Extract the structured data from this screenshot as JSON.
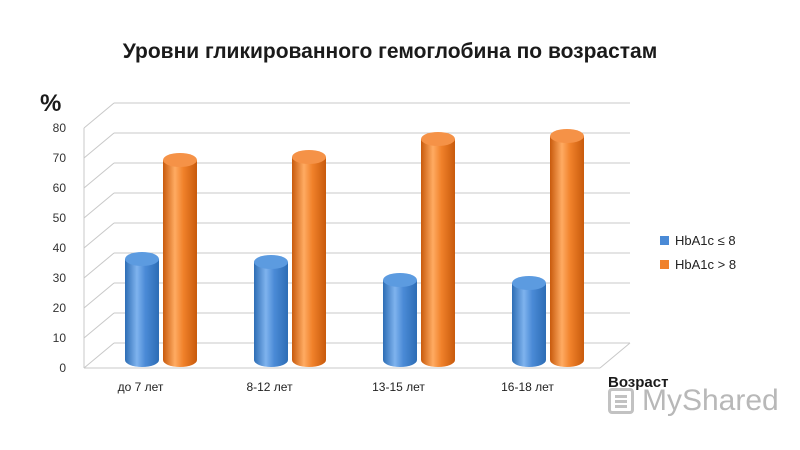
{
  "chart_data": {
    "type": "bar",
    "title": "Уровни гликированного гемоглобина по возрастам",
    "ylabel": "%",
    "xlabel": "Возраст",
    "categories": [
      "до 7 лет",
      "8-12 лет",
      "13-15 лет",
      "16-18 лет"
    ],
    "series": [
      {
        "name": "HbA1c ≤ 8",
        "values": [
          33,
          32,
          26,
          25
        ],
        "color": "#4a8ad6"
      },
      {
        "name": "HbA1c > 8",
        "values": [
          66,
          67,
          73,
          74
        ],
        "color": "#f0812a"
      }
    ],
    "ylim": [
      0,
      80
    ],
    "yticks": [
      "0",
      "10",
      "20",
      "30",
      "40",
      "50",
      "60",
      "70",
      "80"
    ],
    "grid": true,
    "legend_position": "right",
    "style": "3d-cylinder"
  },
  "watermark": {
    "text": "MyShared"
  }
}
